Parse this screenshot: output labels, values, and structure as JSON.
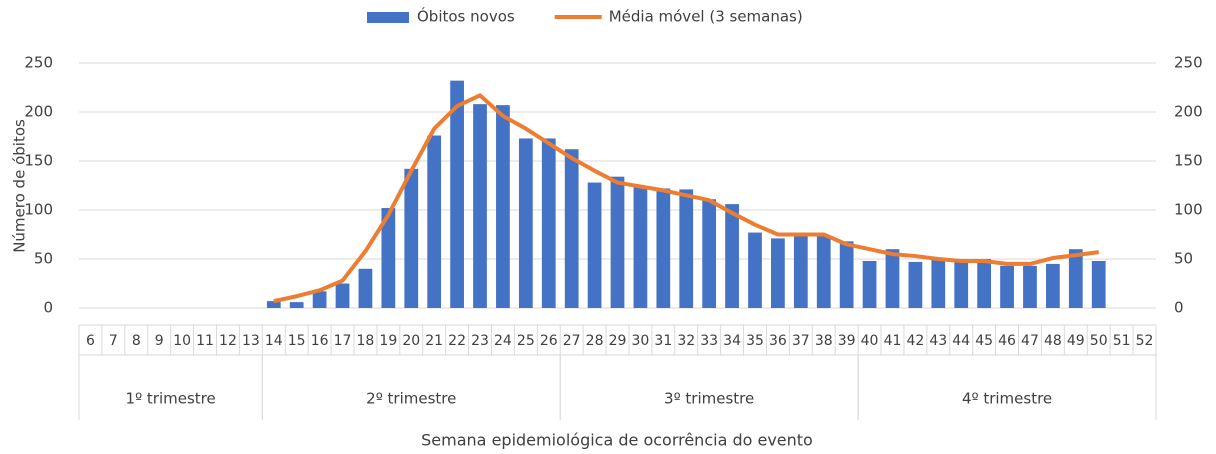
{
  "chart_data": {
    "type": "bar",
    "y_label": "Número de óbitos",
    "x_label": "Semana epidemiológica de ocorrência do evento",
    "categories": [
      "6",
      "7",
      "8",
      "9",
      "10",
      "11",
      "12",
      "13",
      "14",
      "15",
      "16",
      "17",
      "18",
      "19",
      "20",
      "21",
      "22",
      "23",
      "24",
      "25",
      "26",
      "27",
      "28",
      "29",
      "30",
      "31",
      "32",
      "33",
      "34",
      "35",
      "36",
      "37",
      "38",
      "39",
      "40",
      "41",
      "42",
      "43",
      "44",
      "45",
      "46",
      "47",
      "48",
      "49",
      "50",
      "51",
      "52"
    ],
    "groups": [
      {
        "label": "1º trimestre",
        "from": "6",
        "to": "13"
      },
      {
        "label": "2º trimestre",
        "from": "14",
        "to": "26"
      },
      {
        "label": "3º trimestre",
        "from": "27",
        "to": "39"
      },
      {
        "label": "4º trimestre",
        "from": "40",
        "to": "52"
      }
    ],
    "series": [
      {
        "name": "Óbitos novos",
        "type": "bar",
        "color": "#4472c4",
        "values": [
          null,
          null,
          null,
          null,
          null,
          null,
          null,
          null,
          7,
          6,
          17,
          25,
          40,
          102,
          142,
          176,
          232,
          208,
          207,
          173,
          173,
          162,
          128,
          134,
          124,
          122,
          121,
          111,
          106,
          77,
          71,
          77,
          74,
          68,
          48,
          60,
          47,
          50,
          48,
          50,
          43,
          43,
          45,
          60,
          48,
          null,
          null
        ]
      },
      {
        "name": "Média móvel (3 semanas)",
        "type": "line",
        "axis": "y2",
        "color": "#ed7d31",
        "values": [
          null,
          null,
          null,
          null,
          null,
          null,
          null,
          null,
          7,
          12,
          18,
          28,
          58,
          95,
          140,
          183,
          206,
          217,
          196,
          183,
          168,
          153,
          140,
          128,
          124,
          120,
          115,
          110,
          97,
          85,
          75,
          75,
          75,
          65,
          60,
          55,
          53,
          50,
          48,
          48,
          45,
          45,
          51,
          54,
          57,
          null,
          null
        ]
      }
    ],
    "ylim": [
      0,
      250
    ],
    "yticks": [
      0,
      50,
      100,
      150,
      200,
      250
    ],
    "y2lim": [
      0,
      250
    ],
    "y2ticks": [
      0,
      50,
      100,
      150,
      200,
      250
    ],
    "grid": true,
    "legend": "top"
  }
}
